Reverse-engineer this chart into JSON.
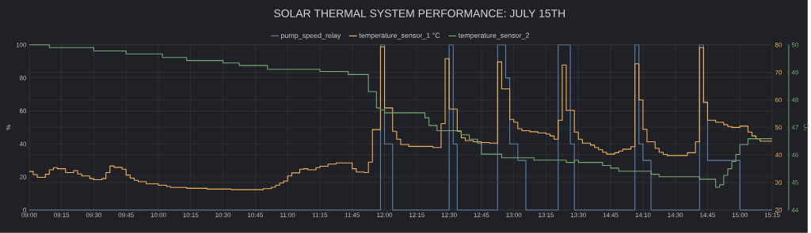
{
  "chart_data": {
    "type": "step",
    "title": "SOLAR THERMAL SYSTEM PERFORMANCE: JULY 15TH",
    "ylabel": "%",
    "y3label": "°C",
    "legend": "top",
    "grid": true,
    "categories": [
      "09:00",
      null,
      null,
      null,
      null,
      null,
      null,
      null,
      "09:15",
      null,
      null,
      null,
      null,
      null,
      null,
      null,
      "09:30",
      null,
      null,
      null,
      null,
      null,
      null,
      null,
      "09:45",
      null,
      null,
      null,
      null,
      null,
      null,
      null,
      "10:00",
      null,
      null,
      null,
      null,
      null,
      null,
      null,
      "10:15",
      null,
      null,
      null,
      null,
      null,
      null,
      null,
      "10:30",
      null,
      null,
      null,
      null,
      null,
      null,
      null,
      "10:45",
      null,
      null,
      null,
      null,
      null,
      null,
      null,
      "11:00",
      null,
      null,
      null,
      null,
      null,
      null,
      null,
      "11:15",
      null,
      null,
      null,
      null,
      null,
      null,
      null,
      "11:45",
      null,
      null,
      null,
      null,
      null,
      null,
      null,
      "12:00",
      null,
      null,
      null,
      null,
      null,
      null,
      null,
      "12:15",
      null,
      null,
      null,
      null,
      null,
      null,
      null,
      "12:30",
      null,
      null,
      null,
      null,
      null,
      null,
      null,
      "12:45",
      null,
      null,
      null,
      null,
      null,
      null,
      null,
      "13:00",
      null,
      null,
      null,
      null,
      null,
      null,
      null,
      "13:15",
      null,
      null,
      null,
      null,
      null,
      null,
      null,
      "13:30",
      null,
      null,
      null,
      null,
      null,
      null,
      null,
      "14:45",
      null,
      null,
      null,
      null,
      null,
      null,
      null,
      "14:10",
      null,
      null,
      null,
      null,
      null,
      null,
      null,
      "14:30",
      null,
      null,
      null,
      null,
      null,
      null,
      null,
      "14:45",
      null,
      null,
      null,
      null,
      null,
      null,
      null,
      "15:00",
      null,
      null,
      null,
      null,
      null,
      null,
      null,
      "15:15"
    ],
    "ylim": [
      0,
      100
    ],
    "yticks": [
      0,
      20,
      40,
      60,
      80,
      100
    ],
    "y2lim": [
      20,
      80
    ],
    "y2ticks": [
      20,
      30,
      40,
      50,
      60,
      70,
      80
    ],
    "y3lim": [
      44,
      50
    ],
    "y3ticks": [
      44,
      45,
      46,
      47,
      48,
      49,
      50
    ],
    "series": [
      {
        "name": "pump_speed_relay",
        "color": "#5f83ad",
        "values": [
          0,
          0,
          0,
          0,
          0,
          0,
          0,
          0,
          0,
          0,
          0,
          0,
          0,
          0,
          0,
          0,
          0,
          0,
          0,
          0,
          0,
          0,
          0,
          0,
          0,
          0,
          0,
          0,
          0,
          0,
          0,
          0,
          0,
          0,
          0,
          0,
          0,
          0,
          0,
          0,
          0,
          0,
          0,
          0,
          0,
          0,
          0,
          0,
          0,
          0,
          0,
          0,
          0,
          0,
          0,
          0,
          0,
          0,
          0,
          0,
          0,
          0,
          0,
          0,
          0,
          0,
          0,
          0,
          0,
          0,
          0,
          0,
          0,
          0,
          0,
          0,
          0,
          0,
          0,
          0,
          0,
          0,
          0,
          0,
          0,
          0,
          0,
          100,
          40,
          40,
          0,
          0,
          0,
          0,
          0,
          0,
          0,
          0,
          0,
          0,
          0,
          0,
          0,
          0,
          100,
          40,
          0,
          0,
          0,
          0,
          0,
          0,
          0,
          0,
          0,
          0,
          100,
          100,
          80,
          40,
          40,
          30,
          30,
          0,
          0,
          0,
          0,
          0,
          0,
          0,
          0,
          100,
          100,
          100,
          40,
          0,
          0,
          0,
          0,
          0,
          0,
          0,
          0,
          0,
          0,
          0,
          0,
          0,
          0,
          0,
          100,
          40,
          30,
          30,
          0,
          0,
          0,
          0,
          0,
          0,
          0,
          0,
          0,
          0,
          0,
          0,
          100,
          65,
          30,
          30,
          30,
          30,
          30,
          30,
          30,
          30,
          0,
          0,
          0,
          0,
          0,
          0,
          0,
          0,
          0
        ]
      },
      {
        "name": "temperature_sensor_1 °C",
        "axis": "y2",
        "color": "#f2b35a",
        "values": [
          34,
          32.9,
          31.9,
          31.9,
          33,
          34.6,
          35.4,
          35,
          35,
          33.6,
          33.6,
          34.3,
          33.1,
          32.4,
          32.4,
          31.4,
          31,
          31,
          31.4,
          33.6,
          36,
          35.5,
          35.5,
          34.8,
          32.7,
          31.6,
          30.8,
          30.3,
          30.3,
          29.5,
          29.5,
          29.5,
          29,
          29,
          28.6,
          28.2,
          28.2,
          28.2,
          28.2,
          27.9,
          27.9,
          27.9,
          27.9,
          27.9,
          27.6,
          27.6,
          27.6,
          27.6,
          27.6,
          27.6,
          27.4,
          27.4,
          27.4,
          27.4,
          27.4,
          27.4,
          27.4,
          27.4,
          27.8,
          27.8,
          28.3,
          29,
          29.8,
          30.5,
          32.4,
          33.5,
          33.5,
          34.8,
          35,
          34.6,
          34.6,
          35.4,
          35.9,
          35.9,
          36.7,
          36.7,
          37.1,
          37.1,
          37.1,
          37.1,
          35,
          33.8,
          33.8,
          33.6,
          37.4,
          49.2,
          49.2,
          79.3,
          57.1,
          57.1,
          48.6,
          45.7,
          43.8,
          43.8,
          43.1,
          43.1,
          43.1,
          43.1,
          43.1,
          43.1,
          42.7,
          42.7,
          51.4,
          75,
          56.7,
          56.7,
          48.6,
          46.2,
          45.2,
          45.2,
          44.8,
          44.8,
          44.5,
          44.5,
          44.3,
          44.3,
          73.8,
          64,
          64,
          52.9,
          51.9,
          49.5,
          48.8,
          48.8,
          48.4,
          48.4,
          48,
          48,
          47.6,
          46.9,
          45.7,
          52.6,
          72.7,
          56.2,
          56.2,
          48.3,
          45.7,
          44.3,
          44.3,
          43.6,
          42.7,
          41.9,
          41,
          40.3,
          40.3,
          40.8,
          41.4,
          42.1,
          42.1,
          43,
          73.1,
          60,
          49.3,
          44.8,
          44.8,
          42.4,
          41,
          40.2,
          39.8,
          39.8,
          39.8,
          39.8,
          39.8,
          40.8,
          40.8,
          44.8,
          79,
          59.2,
          52.6,
          52.6,
          51.9,
          51.9,
          51,
          50.3,
          50,
          50,
          50.5,
          50.5,
          48.3,
          46.9,
          45.9,
          45,
          45,
          45,
          45
        ]
      },
      {
        "name": "temperature_sensor_2",
        "axis": "y3",
        "color": "#76ab76",
        "values": [
          50,
          50,
          50,
          50,
          50,
          49.9,
          49.9,
          49.9,
          49.9,
          49.9,
          49.9,
          49.9,
          49.9,
          49.9,
          49.9,
          49.9,
          49.78,
          49.78,
          49.78,
          49.78,
          49.78,
          49.78,
          49.78,
          49.78,
          49.67,
          49.67,
          49.67,
          49.67,
          49.67,
          49.67,
          49.67,
          49.67,
          49.67,
          49.54,
          49.54,
          49.54,
          49.54,
          49.54,
          49.54,
          49.43,
          49.43,
          49.43,
          49.43,
          49.43,
          49.43,
          49.43,
          49.43,
          49.43,
          49.34,
          49.34,
          49.34,
          49.34,
          49.25,
          49.25,
          49.25,
          49.25,
          49.25,
          49.25,
          49.25,
          49.11,
          49.11,
          49.11,
          49.11,
          49.11,
          49.11,
          49.11,
          49.11,
          49.11,
          49.11,
          49.11,
          49.11,
          49.11,
          49.03,
          49.03,
          49.03,
          49.03,
          49.03,
          49.03,
          49.03,
          48.92,
          48.92,
          48.92,
          48.92,
          48.92,
          48.3,
          48.3,
          47.71,
          47.64,
          47.53,
          47.53,
          47.53,
          47.53,
          47.53,
          47.53,
          47.53,
          47.53,
          47.53,
          47.53,
          47.35,
          47.07,
          47.07,
          46.88,
          46.88,
          46.88,
          46.88,
          46.88,
          46.88,
          46.73,
          46.73,
          46.57,
          46.57,
          46.43,
          46.03,
          46.03,
          46.03,
          46.03,
          46.03,
          45.9,
          45.9,
          45.9,
          45.9,
          45.9,
          45.9,
          45.9,
          45.9,
          45.81,
          45.81,
          45.81,
          45.81,
          45.81,
          45.81,
          45.81,
          45.81,
          45.73,
          45.73,
          45.81,
          45.73,
          45.73,
          45.73,
          45.73,
          45.73,
          45.73,
          45.62,
          45.62,
          45.52,
          45.52,
          45.41,
          45.41,
          45.41,
          45.41,
          45.41,
          45.41,
          45.41,
          45.41,
          45.3,
          45.3,
          45.21,
          45.21,
          45.21,
          45.21,
          45.21,
          45.21,
          45.21,
          45.21,
          45.21,
          45.21,
          45.12,
          45.12,
          45.12,
          45.12,
          44.83,
          44.92,
          45.26,
          45.5,
          45.76,
          46.02,
          46.38,
          46.38,
          46.59,
          46.59,
          46.59,
          46.59,
          46.59,
          46.59,
          46.59
        ]
      }
    ]
  }
}
